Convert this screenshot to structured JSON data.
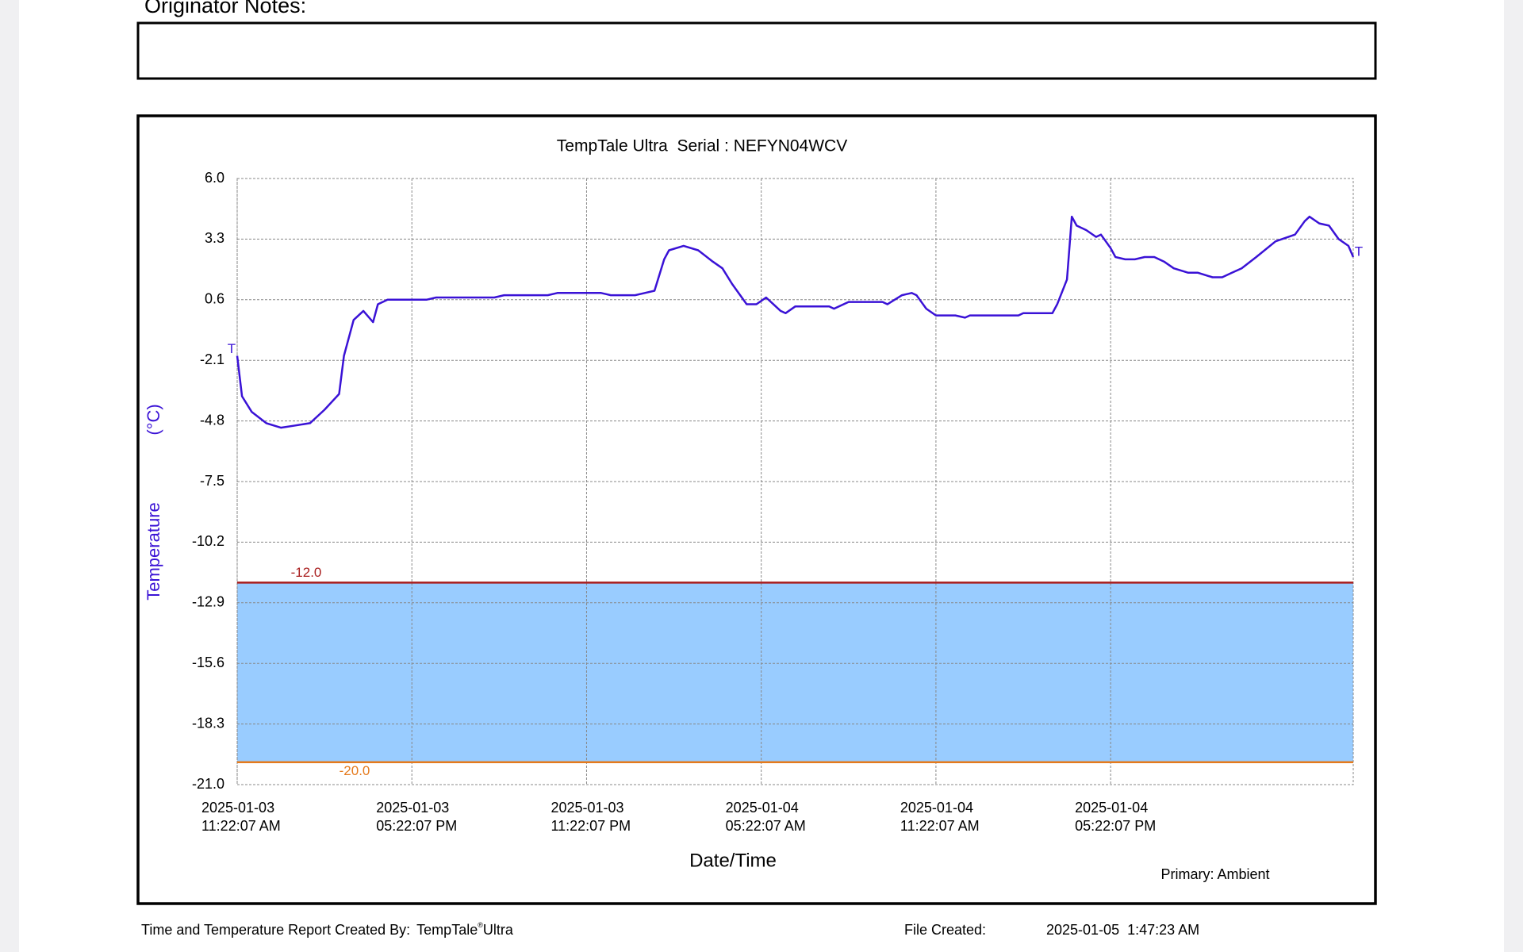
{
  "header": {
    "notes_label": "Originator Notes:"
  },
  "chart_data": {
    "type": "line",
    "title": "TempTale Ultra  Serial : NEFYN04WCV",
    "y_label": "Temperature",
    "y_unit": "(°C)",
    "x_label": "Date/Time",
    "legend": "Primary: Ambient",
    "start_marker": "T",
    "end_marker": "T",
    "color": "#3a12d6",
    "band_color": "#99ccff",
    "grid": true,
    "ylim": [
      -21,
      6
    ],
    "yticks": [
      {
        "value": 6,
        "label": "6.0"
      },
      {
        "value": 3.3,
        "label": "3.3"
      },
      {
        "value": 0.6,
        "label": "0.6"
      },
      {
        "value": -2.1,
        "label": "-2.1"
      },
      {
        "value": -4.8,
        "label": "-4.8"
      },
      {
        "value": -7.5,
        "label": "-7.5"
      },
      {
        "value": -10.2,
        "label": "-10.2"
      },
      {
        "value": -12.9,
        "label": "-12.9"
      },
      {
        "value": -15.6,
        "label": "-15.6"
      },
      {
        "value": -18.3,
        "label": "-18.3"
      },
      {
        "value": -21,
        "label": "-21.0"
      }
    ],
    "xlim": [
      "2025-01-03T11:22:07",
      "2025-01-05T01:42:07"
    ],
    "xticks": [
      {
        "value": "2025-01-03T11:22:07",
        "label": [
          "2025-01-03",
          "11:22:07 AM"
        ]
      },
      {
        "value": "2025-01-03T17:22:07",
        "label": [
          "2025-01-03",
          "05:22:07 PM"
        ]
      },
      {
        "value": "2025-01-03T23:22:07",
        "label": [
          "2025-01-03",
          "11:22:07 PM"
        ]
      },
      {
        "value": "2025-01-04T05:22:07",
        "label": [
          "2025-01-04",
          "05:22:07 AM"
        ]
      },
      {
        "value": "2025-01-04T11:22:07",
        "label": [
          "2025-01-04",
          "11:22:07 AM"
        ]
      },
      {
        "value": "2025-01-04T17:22:07",
        "label": [
          "2025-01-04",
          "05:22:07 PM"
        ]
      }
    ],
    "thresholds": [
      {
        "value": -12,
        "label": "-12.0",
        "color": "#a81c1c"
      },
      {
        "value": -20,
        "label": "-20.0",
        "color": "#e57a1c"
      }
    ],
    "x": [
      "2025-01-03T11:22:07",
      "2025-01-03T11:32:07",
      "2025-01-03T11:52:07",
      "2025-01-03T12:22:07",
      "2025-01-03T12:52:07",
      "2025-01-03T13:22:07",
      "2025-01-03T13:52:07",
      "2025-01-03T14:22:07",
      "2025-01-03T14:52:07",
      "2025-01-03T15:02:07",
      "2025-01-03T15:22:07",
      "2025-01-03T15:42:07",
      "2025-01-03T16:02:07",
      "2025-01-03T16:12:07",
      "2025-01-03T16:32:07",
      "2025-01-03T17:52:07",
      "2025-01-03T18:12:07",
      "2025-01-03T20:12:07",
      "2025-01-03T20:32:07",
      "2025-01-03T22:02:07",
      "2025-01-03T22:22:07",
      "2025-01-03T23:52:07",
      "2025-01-04T00:12:07",
      "2025-01-04T01:02:07",
      "2025-01-04T01:22:07",
      "2025-01-04T01:42:07",
      "2025-01-04T02:02:07",
      "2025-01-04T02:12:07",
      "2025-01-04T02:42:07",
      "2025-01-04T03:12:07",
      "2025-01-04T03:42:07",
      "2025-01-04T04:02:07",
      "2025-01-04T04:22:07",
      "2025-01-04T04:52:07",
      "2025-01-04T05:12:07",
      "2025-01-04T05:32:07",
      "2025-01-04T06:02:07",
      "2025-01-04T06:12:07",
      "2025-01-04T06:32:07",
      "2025-01-04T07:42:07",
      "2025-01-04T07:52:07",
      "2025-01-04T08:22:07",
      "2025-01-04T09:32:07",
      "2025-01-04T09:42:07",
      "2025-01-04T10:12:07",
      "2025-01-04T10:32:07",
      "2025-01-04T10:42:07",
      "2025-01-04T11:02:07",
      "2025-01-04T11:22:07",
      "2025-01-04T12:02:07",
      "2025-01-04T12:22:07",
      "2025-01-04T12:32:07",
      "2025-01-04T14:12:07",
      "2025-01-04T14:22:07",
      "2025-01-04T15:22:07",
      "2025-01-04T15:32:07",
      "2025-01-04T15:52:07",
      "2025-01-04T16:02:07",
      "2025-01-04T16:12:07",
      "2025-01-04T16:32:07",
      "2025-01-04T16:52:07",
      "2025-01-04T17:02:07",
      "2025-01-04T17:22:07",
      "2025-01-04T17:32:07",
      "2025-01-04T17:52:07",
      "2025-01-04T18:12:07",
      "2025-01-04T18:32:07",
      "2025-01-04T18:52:07",
      "2025-01-04T19:12:07",
      "2025-01-04T19:32:07",
      "2025-01-04T20:02:07",
      "2025-01-04T20:22:07",
      "2025-01-04T20:52:07",
      "2025-01-04T21:12:07",
      "2025-01-04T21:32:07",
      "2025-01-04T21:52:07",
      "2025-01-04T22:22:07",
      "2025-01-04T23:02:07",
      "2025-01-04T23:42:07",
      "2025-01-05T00:02:07",
      "2025-01-05T00:12:07",
      "2025-01-05T00:32:07",
      "2025-01-05T00:52:07",
      "2025-01-05T01:12:07",
      "2025-01-05T01:32:07",
      "2025-01-05T01:42:07"
    ],
    "values": [
      -1.9,
      -3.7,
      -4.4,
      -4.9,
      -5.1,
      -5.0,
      -4.9,
      -4.3,
      -3.6,
      -1.9,
      -0.3,
      0.1,
      -0.4,
      0.4,
      0.6,
      0.6,
      0.7,
      0.7,
      0.8,
      0.8,
      0.9,
      0.9,
      0.8,
      0.8,
      0.9,
      1.0,
      2.4,
      2.8,
      3.0,
      2.8,
      2.3,
      2.0,
      1.3,
      0.4,
      0.4,
      0.7,
      0.1,
      0.0,
      0.3,
      0.3,
      0.2,
      0.5,
      0.5,
      0.4,
      0.8,
      0.9,
      0.8,
      0.2,
      -0.1,
      -0.1,
      -0.2,
      -0.1,
      -0.1,
      0.0,
      0.0,
      0.4,
      1.5,
      4.3,
      3.9,
      3.7,
      3.4,
      3.5,
      2.9,
      2.5,
      2.4,
      2.4,
      2.5,
      2.5,
      2.3,
      2.0,
      1.8,
      1.8,
      1.6,
      1.6,
      1.8,
      2.0,
      2.5,
      3.2,
      3.5,
      4.1,
      4.3,
      4.0,
      3.9,
      3.3,
      3.0,
      2.5
    ]
  },
  "footer": {
    "created_by_label": "Time and Temperature Report Created By:",
    "product": "TempTale",
    "registered": "®",
    "product_suffix": "Ultra",
    "file_created_label": "File Created:",
    "file_created": "2025-01-05  1:47:23 AM"
  }
}
